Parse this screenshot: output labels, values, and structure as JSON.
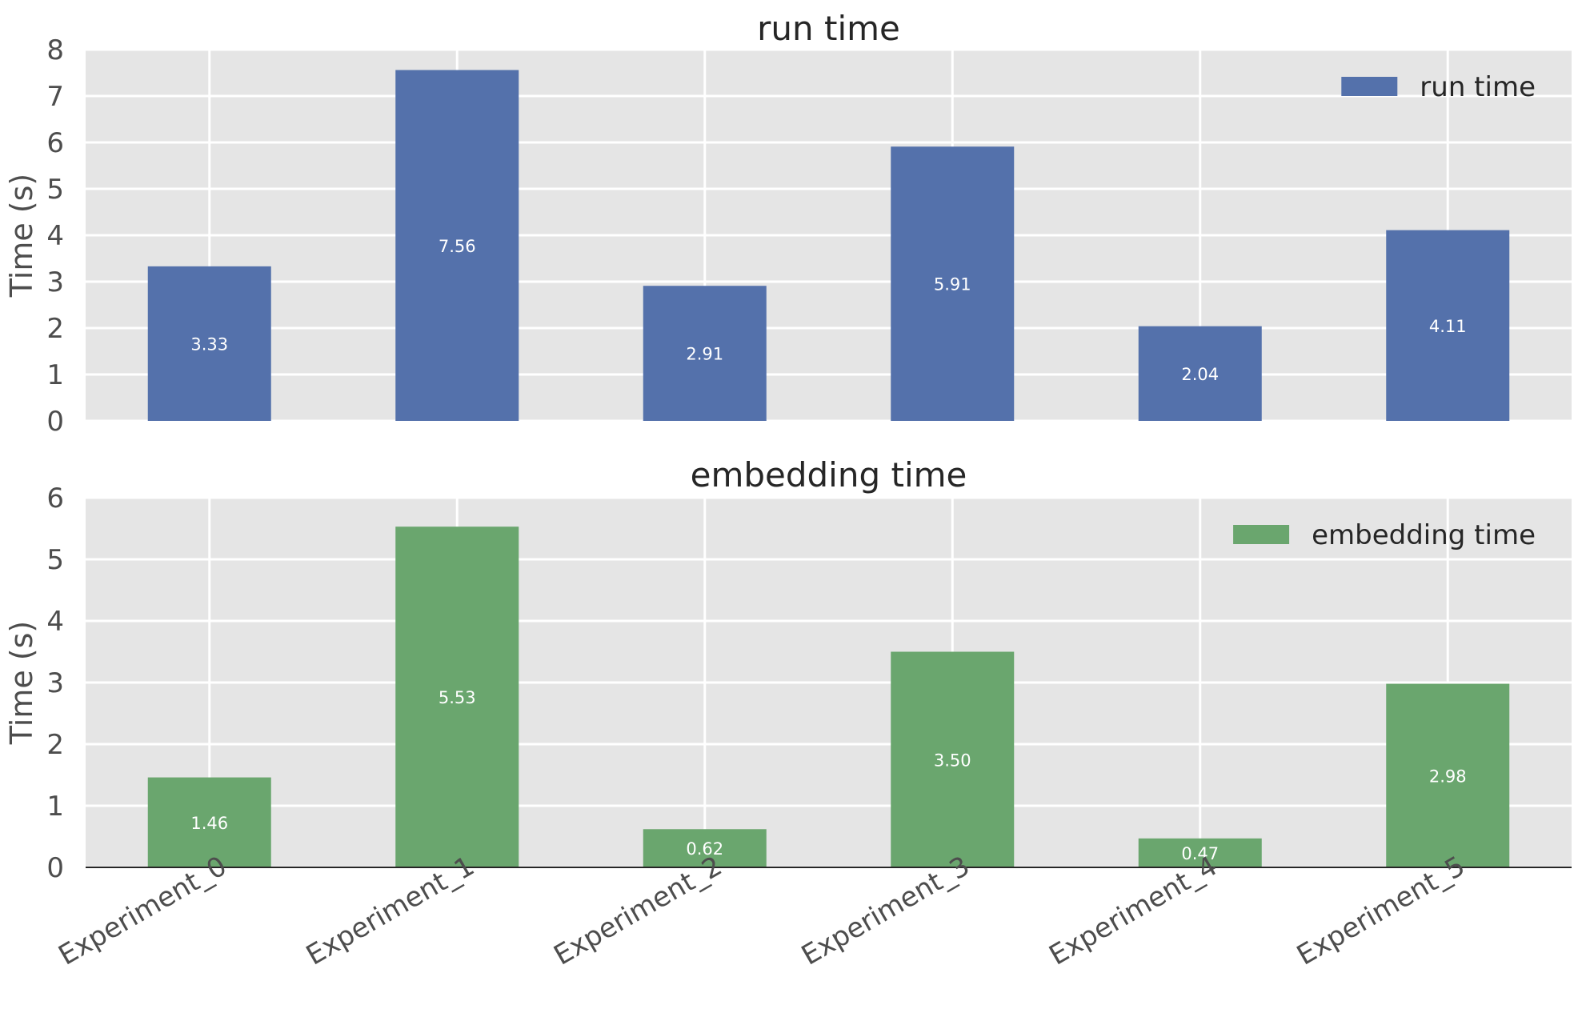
{
  "chart_data": [
    {
      "type": "bar",
      "title": "run time",
      "ylabel": "Time (s)",
      "xlabel": "",
      "categories": [
        "Experiment_0",
        "Experiment_1",
        "Experiment_2",
        "Experiment_3",
        "Experiment_4",
        "Experiment_5"
      ],
      "series": [
        {
          "name": "run time",
          "values": [
            3.33,
            7.56,
            2.91,
            5.91,
            2.04,
            4.11
          ],
          "labels": [
            "3.33",
            "7.56",
            "2.91",
            "5.91",
            "2.04",
            "4.11"
          ],
          "color": "#5471ab"
        }
      ],
      "ylim": [
        0,
        8
      ],
      "yticks": [
        "0",
        "1",
        "2",
        "3",
        "4",
        "5",
        "6",
        "7",
        "8"
      ],
      "grid": true,
      "legend_position": "top-right",
      "show_xticklabels": false
    },
    {
      "type": "bar",
      "title": "embedding time",
      "ylabel": "Time (s)",
      "xlabel": "",
      "categories": [
        "Experiment_0",
        "Experiment_1",
        "Experiment_2",
        "Experiment_3",
        "Experiment_4",
        "Experiment_5"
      ],
      "series": [
        {
          "name": "embedding time",
          "values": [
            1.46,
            5.53,
            0.62,
            3.5,
            0.47,
            2.98
          ],
          "labels": [
            "1.46",
            "5.53",
            "0.62",
            "3.50",
            "0.47",
            "2.98"
          ],
          "color": "#6aa66e"
        }
      ],
      "ylim": [
        0,
        6
      ],
      "yticks": [
        "0",
        "1",
        "2",
        "3",
        "4",
        "5",
        "6"
      ],
      "grid": true,
      "legend_position": "top-right",
      "show_xticklabels": true
    }
  ],
  "colors": {
    "axes_background": "#e5e5e5",
    "grid": "#ffffff"
  }
}
